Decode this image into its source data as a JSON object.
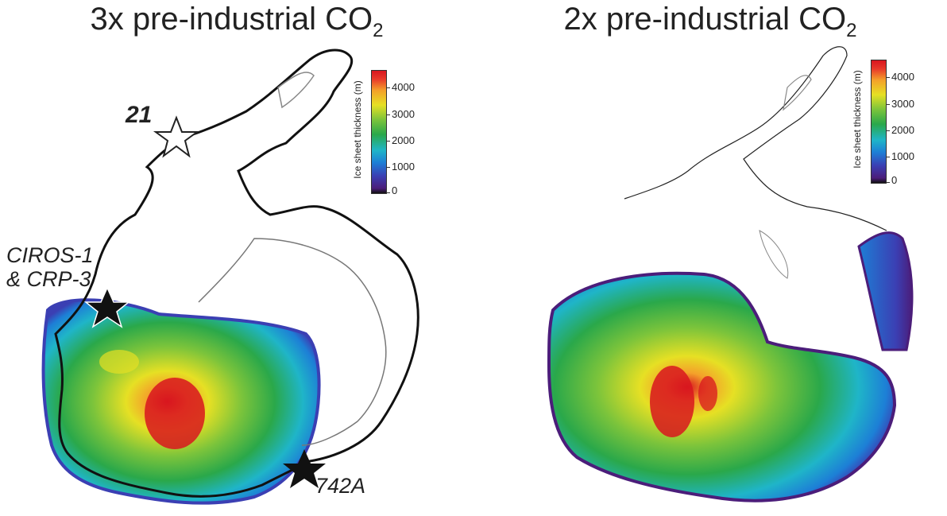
{
  "panels": [
    {
      "title_prefix": "3x pre-industrial CO",
      "title_subscript": "2",
      "colorbar": {
        "title": "Ice sheet thickness (m)",
        "ticks": [
          "4000",
          "3000",
          "2000",
          "1000",
          "0"
        ]
      },
      "sites": [
        {
          "label": "21"
        },
        {
          "label": "CIROS-1"
        },
        {
          "label": "& CRP-3"
        },
        {
          "label": "742A"
        }
      ]
    },
    {
      "title_prefix": "2x pre-industrial CO",
      "title_subscript": "2",
      "colorbar": {
        "title": "Ice sheet thickness (m)",
        "ticks": [
          "4000",
          "3000",
          "2000",
          "1000",
          "0"
        ]
      }
    }
  ],
  "colors": {
    "ice_thin": "#3b3fb3",
    "ice_mid": "#1fb5c8",
    "ice_green": "#2aa84a",
    "ice_yellow": "#e6e024",
    "ice_thick": "#d8161f",
    "coastline": "#111111"
  }
}
